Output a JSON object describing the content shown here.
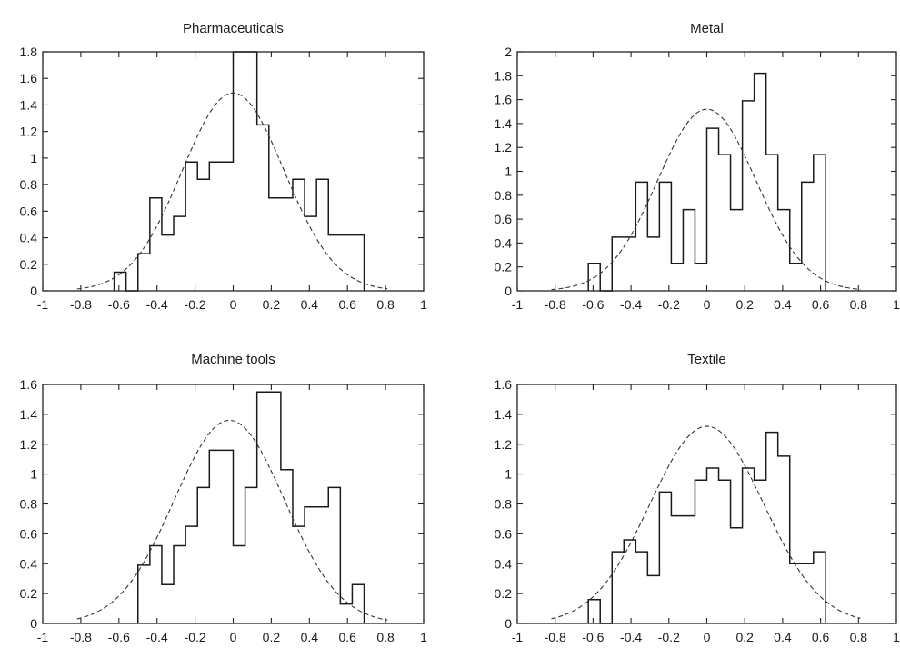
{
  "chart_data": [
    {
      "type": "histogram",
      "title": "Pharmaceuticals",
      "xlim": [
        -1,
        1
      ],
      "ylim": [
        0,
        1.8
      ],
      "xticks": [
        "-1",
        "-0.8",
        "-0.6",
        "-0.4",
        "-0.2",
        "0",
        "0.2",
        "0.4",
        "0.6",
        "0.8",
        "1"
      ],
      "yticks": [
        "0",
        "0.2",
        "0.4",
        "0.6",
        "0.8",
        "1",
        "1.2",
        "1.4",
        "1.6",
        "1.8"
      ],
      "bin_width": 0.0625,
      "bins": [
        {
          "x0": -0.625,
          "y": 0.14
        },
        {
          "x0": -0.5625,
          "y": 0.0
        },
        {
          "x0": -0.5,
          "y": 0.28
        },
        {
          "x0": -0.4375,
          "y": 0.7
        },
        {
          "x0": -0.375,
          "y": 0.42
        },
        {
          "x0": -0.3125,
          "y": 0.56
        },
        {
          "x0": -0.25,
          "y": 0.97
        },
        {
          "x0": -0.1875,
          "y": 0.84
        },
        {
          "x0": -0.125,
          "y": 0.97
        },
        {
          "x0": -0.0625,
          "y": 0.97
        },
        {
          "x0": 0.0,
          "y": 1.81
        },
        {
          "x0": 0.0625,
          "y": 1.81
        },
        {
          "x0": 0.125,
          "y": 1.25
        },
        {
          "x0": 0.1875,
          "y": 0.7
        },
        {
          "x0": 0.25,
          "y": 0.7
        },
        {
          "x0": 0.3125,
          "y": 0.84
        },
        {
          "x0": 0.375,
          "y": 0.56
        },
        {
          "x0": 0.4375,
          "y": 0.84
        },
        {
          "x0": 0.5,
          "y": 0.42
        },
        {
          "x0": 0.5625,
          "y": 0.42
        },
        {
          "x0": 0.625,
          "y": 0.42
        }
      ],
      "normal_fit": {
        "mean": 0.0,
        "sd": 0.268,
        "peak": 1.49
      }
    },
    {
      "type": "histogram",
      "title": "Metal",
      "xlim": [
        -1,
        1
      ],
      "ylim": [
        0,
        2
      ],
      "xticks": [
        "-1",
        "-0.8",
        "-0.6",
        "-0.4",
        "-0.2",
        "0",
        "0.2",
        "0.4",
        "0.6",
        "0.8",
        "1"
      ],
      "yticks": [
        "0",
        "0.2",
        "0.4",
        "0.6",
        "0.8",
        "1",
        "1.2",
        "1.4",
        "1.6",
        "1.8",
        "2"
      ],
      "bin_width": 0.0625,
      "bins": [
        {
          "x0": -0.625,
          "y": 0.23
        },
        {
          "x0": -0.5625,
          "y": 0.0
        },
        {
          "x0": -0.5,
          "y": 0.45
        },
        {
          "x0": -0.4375,
          "y": 0.45
        },
        {
          "x0": -0.375,
          "y": 0.91
        },
        {
          "x0": -0.3125,
          "y": 0.45
        },
        {
          "x0": -0.25,
          "y": 0.91
        },
        {
          "x0": -0.1875,
          "y": 0.23
        },
        {
          "x0": -0.125,
          "y": 0.68
        },
        {
          "x0": -0.0625,
          "y": 0.23
        },
        {
          "x0": 0.0,
          "y": 1.36
        },
        {
          "x0": 0.0625,
          "y": 1.14
        },
        {
          "x0": 0.125,
          "y": 0.68
        },
        {
          "x0": 0.1875,
          "y": 1.59
        },
        {
          "x0": 0.25,
          "y": 1.82
        },
        {
          "x0": 0.3125,
          "y": 1.14
        },
        {
          "x0": 0.375,
          "y": 0.68
        },
        {
          "x0": 0.4375,
          "y": 0.23
        },
        {
          "x0": 0.5,
          "y": 0.91
        },
        {
          "x0": 0.5625,
          "y": 1.14
        }
      ],
      "normal_fit": {
        "mean": 0.0,
        "sd": 0.26,
        "peak": 1.52
      }
    },
    {
      "type": "histogram",
      "title": "Machine tools",
      "xlim": [
        -1,
        1
      ],
      "ylim": [
        0,
        1.6
      ],
      "xticks": [
        "-1",
        "-0.8",
        "-0.6",
        "-0.4",
        "-0.2",
        "0",
        "0.2",
        "0.4",
        "0.6",
        "0.8",
        "1"
      ],
      "yticks": [
        "0",
        "0.2",
        "0.4",
        "0.6",
        "0.8",
        "1",
        "1.2",
        "1.4",
        "1.6"
      ],
      "bin_width": 0.0625,
      "bins": [
        {
          "x0": -0.5,
          "y": 0.39
        },
        {
          "x0": -0.4375,
          "y": 0.52
        },
        {
          "x0": -0.375,
          "y": 0.26
        },
        {
          "x0": -0.3125,
          "y": 0.52
        },
        {
          "x0": -0.25,
          "y": 0.65
        },
        {
          "x0": -0.1875,
          "y": 0.91
        },
        {
          "x0": -0.125,
          "y": 1.16
        },
        {
          "x0": -0.0625,
          "y": 1.16
        },
        {
          "x0": 0.0,
          "y": 0.52
        },
        {
          "x0": 0.0625,
          "y": 0.91
        },
        {
          "x0": 0.125,
          "y": 1.55
        },
        {
          "x0": 0.1875,
          "y": 1.55
        },
        {
          "x0": 0.25,
          "y": 1.03
        },
        {
          "x0": 0.3125,
          "y": 0.65
        },
        {
          "x0": 0.375,
          "y": 0.78
        },
        {
          "x0": 0.4375,
          "y": 0.78
        },
        {
          "x0": 0.5,
          "y": 0.91
        },
        {
          "x0": 0.5625,
          "y": 0.13
        },
        {
          "x0": 0.625,
          "y": 0.26
        }
      ],
      "normal_fit": {
        "mean": -0.02,
        "sd": 0.29,
        "peak": 1.36
      }
    },
    {
      "type": "histogram",
      "title": "Textile",
      "xlim": [
        -1,
        1
      ],
      "ylim": [
        0,
        1.6
      ],
      "xticks": [
        "-1",
        "-0.8",
        "-0.6",
        "-0.4",
        "-0.2",
        "0",
        "0.2",
        "0.4",
        "0.6",
        "0.8",
        "1"
      ],
      "yticks": [
        "0",
        "0.2",
        "0.4",
        "0.6",
        "0.8",
        "1",
        "1.2",
        "1.4",
        "1.6"
      ],
      "bin_width": 0.0625,
      "bins": [
        {
          "x0": -0.625,
          "y": 0.16
        },
        {
          "x0": -0.5625,
          "y": 0.0
        },
        {
          "x0": -0.5,
          "y": 0.48
        },
        {
          "x0": -0.4375,
          "y": 0.56
        },
        {
          "x0": -0.375,
          "y": 0.48
        },
        {
          "x0": -0.3125,
          "y": 0.32
        },
        {
          "x0": -0.25,
          "y": 0.88
        },
        {
          "x0": -0.1875,
          "y": 0.72
        },
        {
          "x0": -0.125,
          "y": 0.72
        },
        {
          "x0": -0.0625,
          "y": 0.96
        },
        {
          "x0": 0.0,
          "y": 1.04
        },
        {
          "x0": 0.0625,
          "y": 0.96
        },
        {
          "x0": 0.125,
          "y": 0.64
        },
        {
          "x0": 0.1875,
          "y": 1.04
        },
        {
          "x0": 0.25,
          "y": 0.96
        },
        {
          "x0": 0.3125,
          "y": 1.28
        },
        {
          "x0": 0.375,
          "y": 1.12
        },
        {
          "x0": 0.4375,
          "y": 0.4
        },
        {
          "x0": 0.5,
          "y": 0.4
        },
        {
          "x0": 0.5625,
          "y": 0.48
        }
      ],
      "normal_fit": {
        "mean": 0.0,
        "sd": 0.3,
        "peak": 1.32
      }
    }
  ]
}
